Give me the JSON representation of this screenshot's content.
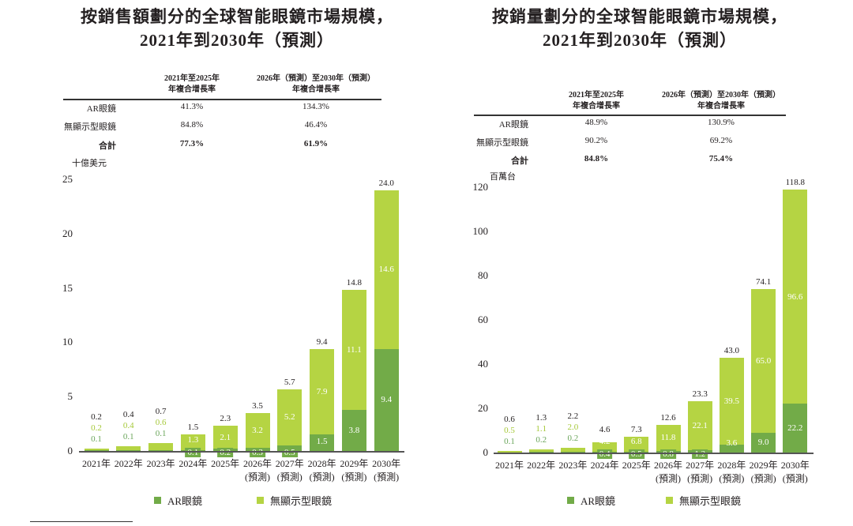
{
  "colors": {
    "ar": "#72ab48",
    "nd": "#b5d443",
    "text": "#231f20"
  },
  "legend": {
    "ar": "AR眼鏡",
    "nd": "無顯示型眼鏡"
  },
  "chart_data": [
    {
      "type": "bar",
      "stacked": true,
      "title_line1": "按銷售額劃分的全球智能眼鏡市場規模，",
      "title_line2": "2021年到2030年（預測）",
      "ylabel": "十億美元",
      "ylim": [
        0,
        25
      ],
      "yticks": [
        "0",
        "5",
        "10",
        "15",
        "20",
        "25"
      ],
      "ytick_values": [
        0,
        5,
        10,
        15,
        20,
        25
      ],
      "categories": [
        "2021年",
        "2022年",
        "2023年",
        "2024年",
        "2025年",
        "2026年",
        "2027年",
        "2028年",
        "2029年",
        "2030年"
      ],
      "category_notes": [
        "",
        "",
        "",
        "",
        "",
        "(預測)",
        "(預測)",
        "(預測)",
        "(預測)",
        "(預測)"
      ],
      "series": [
        {
          "name": "AR眼鏡",
          "values": [
            "0.1",
            "0.1",
            "0.1",
            "0.1",
            "0.2",
            "0.3",
            "0.5",
            "1.5",
            "3.8",
            "9.4"
          ]
        },
        {
          "name": "無顯示型眼鏡",
          "values": [
            "0.2",
            "0.4",
            "0.6",
            "1.3",
            "2.1",
            "3.2",
            "5.2",
            "7.9",
            "11.1",
            "14.6"
          ]
        }
      ],
      "totals": [
        "0.2",
        "0.4",
        "0.7",
        "1.5",
        "2.3",
        "3.5",
        "5.7",
        "9.4",
        "14.8",
        "24.0"
      ],
      "cagr_table": {
        "headers": [
          [
            "2021年至2025年",
            "年複合增長率"
          ],
          [
            "2026年（預測）至2030年（預測）",
            "年複合增長率"
          ]
        ],
        "rows": [
          {
            "label": "AR眼鏡",
            "values": [
              "41.3%",
              "134.3%"
            ]
          },
          {
            "label": "無顯示型眼鏡",
            "values": [
              "84.8%",
              "46.4%"
            ]
          },
          {
            "label": "合計",
            "values": [
              "77.3%",
              "61.9%"
            ]
          }
        ]
      },
      "legend": [
        "AR眼鏡",
        "無顯示型眼鏡"
      ]
    },
    {
      "type": "bar",
      "stacked": true,
      "title_line1": "按銷量劃分的全球智能眼鏡市場規模，",
      "title_line2": "2021年到2030年（預測）",
      "ylabel": "百萬台",
      "ylim": [
        0,
        120
      ],
      "yticks": [
        "0",
        "20",
        "40",
        "60",
        "80",
        "100",
        "120"
      ],
      "ytick_values": [
        0,
        20,
        40,
        60,
        80,
        100,
        120
      ],
      "categories": [
        "2021年",
        "2022年",
        "2023年",
        "2024年",
        "2025年",
        "2026年",
        "2027年",
        "2028年",
        "2029年",
        "2030年"
      ],
      "category_notes": [
        "",
        "",
        "",
        "",
        "",
        "(預測)",
        "(預測)",
        "(預測)",
        "(預測)",
        "(預測)"
      ],
      "series": [
        {
          "name": "AR眼鏡",
          "values": [
            "0.1",
            "0.2",
            "0.2",
            "0.4",
            "0.5",
            "0.8",
            "1.2",
            "3.6",
            "9.0",
            "22.2"
          ]
        },
        {
          "name": "無顯示型眼鏡",
          "values": [
            "0.5",
            "1.1",
            "2.0",
            "4.2",
            "6.8",
            "11.8",
            "22.1",
            "39.5",
            "65.0",
            "96.6"
          ]
        }
      ],
      "totals": [
        "0.6",
        "1.3",
        "2.2",
        "4.6",
        "7.3",
        "12.6",
        "23.3",
        "43.0",
        "74.1",
        "118.8"
      ],
      "cagr_table": {
        "headers": [
          [
            "2021年至2025年",
            "年複合增長率"
          ],
          [
            "2026年（預測）至2030年（預測）",
            "年複合增長率"
          ]
        ],
        "rows": [
          {
            "label": "AR眼鏡",
            "values": [
              "48.9%",
              "130.9%"
            ]
          },
          {
            "label": "無顯示型眼鏡",
            "values": [
              "90.2%",
              "69.2%"
            ]
          },
          {
            "label": "合計",
            "values": [
              "84.8%",
              "75.4%"
            ]
          }
        ]
      },
      "legend": [
        "AR眼鏡",
        "無顯示型眼鏡"
      ]
    }
  ]
}
